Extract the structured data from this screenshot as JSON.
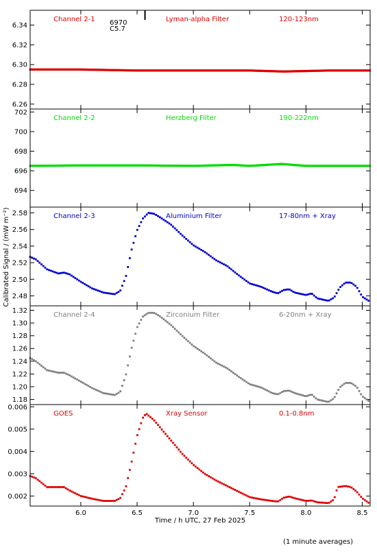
{
  "footer_note": "(1 minute averages)",
  "chart_data": {
    "type": "scatter",
    "shared_x": {
      "label": "Time / h UTC, 27 Feb 2025",
      "range": [
        5.55,
        8.57
      ],
      "ticks": [
        6.0,
        6.5,
        7.0,
        7.5,
        8.0,
        8.5
      ],
      "tick_labels": [
        "6.0",
        "6.5",
        "7.0",
        "7.5",
        "8.0",
        "8.5"
      ]
    },
    "shared_ylabel": "Calibrated Signal / (mW m⁻²)",
    "panels": [
      {
        "id": "ch21",
        "channel_label": "Channel 2-1",
        "filter_label": "Lyman-alpha Filter",
        "band_label": "120-123nm",
        "color": "#dd0000",
        "ylim": [
          6.255,
          6.355
        ],
        "yticks": [
          6.26,
          6.28,
          6.3,
          6.32,
          6.34
        ],
        "ytick_labels": [
          "6.26",
          "6.28",
          "6.30",
          "6.32",
          "6.34"
        ],
        "annotations": [
          "6970",
          "C5.7"
        ],
        "event_marker_x": 6.57,
        "points": [
          [
            5.55,
            6.295
          ],
          [
            6.0,
            6.295
          ],
          [
            6.5,
            6.294
          ],
          [
            7.0,
            6.294
          ],
          [
            7.5,
            6.294
          ],
          [
            7.8,
            6.293
          ],
          [
            8.2,
            6.294
          ],
          [
            8.57,
            6.294
          ]
        ]
      },
      {
        "id": "ch22",
        "channel_label": "Channel 2-2",
        "filter_label": "Herzberg Filter",
        "band_label": "190-222nm",
        "color": "#00dd00",
        "ylim": [
          692.3,
          702.3
        ],
        "yticks": [
          694,
          696,
          698,
          700,
          702
        ],
        "ytick_labels": [
          "694",
          "696",
          "698",
          "700",
          "702"
        ],
        "points": [
          [
            5.55,
            696.5
          ],
          [
            6.0,
            696.55
          ],
          [
            6.5,
            696.55
          ],
          [
            7.0,
            696.5
          ],
          [
            7.35,
            696.6
          ],
          [
            7.5,
            696.5
          ],
          [
            7.78,
            696.7
          ],
          [
            8.0,
            696.5
          ],
          [
            8.57,
            696.5
          ]
        ]
      },
      {
        "id": "ch23",
        "channel_label": "Channel 2-3",
        "filter_label": "Aluminium Filter",
        "band_label": "17-80nm + Xray",
        "color": "#0000cc",
        "ylim": [
          2.468,
          2.587
        ],
        "yticks": [
          2.48,
          2.5,
          2.52,
          2.54,
          2.56,
          2.58
        ],
        "ytick_labels": [
          "2.48",
          "2.50",
          "2.52",
          "2.54",
          "2.56",
          "2.58"
        ],
        "points": [
          [
            5.55,
            2.527
          ],
          [
            5.6,
            2.524
          ],
          [
            5.7,
            2.512
          ],
          [
            5.8,
            2.507
          ],
          [
            5.85,
            2.508
          ],
          [
            5.9,
            2.506
          ],
          [
            6.0,
            2.497
          ],
          [
            6.1,
            2.489
          ],
          [
            6.2,
            2.484
          ],
          [
            6.3,
            2.482
          ],
          [
            6.35,
            2.486
          ],
          [
            6.4,
            2.503
          ],
          [
            6.45,
            2.535
          ],
          [
            6.5,
            2.559
          ],
          [
            6.55,
            2.573
          ],
          [
            6.6,
            2.58
          ],
          [
            6.65,
            2.579
          ],
          [
            6.7,
            2.575
          ],
          [
            6.8,
            2.566
          ],
          [
            6.9,
            2.553
          ],
          [
            7.0,
            2.541
          ],
          [
            7.1,
            2.533
          ],
          [
            7.2,
            2.523
          ],
          [
            7.3,
            2.516
          ],
          [
            7.4,
            2.505
          ],
          [
            7.5,
            2.495
          ],
          [
            7.6,
            2.491
          ],
          [
            7.7,
            2.485
          ],
          [
            7.75,
            2.483
          ],
          [
            7.8,
            2.487
          ],
          [
            7.85,
            2.488
          ],
          [
            7.9,
            2.484
          ],
          [
            8.0,
            2.481
          ],
          [
            8.05,
            2.483
          ],
          [
            8.1,
            2.477
          ],
          [
            8.2,
            2.474
          ],
          [
            8.25,
            2.478
          ],
          [
            8.3,
            2.49
          ],
          [
            8.35,
            2.496
          ],
          [
            8.4,
            2.496
          ],
          [
            8.45,
            2.491
          ],
          [
            8.5,
            2.479
          ],
          [
            8.57,
            2.473
          ]
        ]
      },
      {
        "id": "ch24",
        "channel_label": "Channel 2-4",
        "filter_label": "Zirconium Filter",
        "band_label": "6-20nm + Xray",
        "color": "#808080",
        "ylim": [
          1.172,
          1.327
        ],
        "yticks": [
          1.18,
          1.2,
          1.22,
          1.24,
          1.26,
          1.28,
          1.3,
          1.32
        ],
        "ytick_labels": [
          "1.18",
          "1.20",
          "1.22",
          "1.24",
          "1.26",
          "1.28",
          "1.30",
          "1.32"
        ],
        "points": [
          [
            5.55,
            1.245
          ],
          [
            5.6,
            1.24
          ],
          [
            5.7,
            1.226
          ],
          [
            5.8,
            1.222
          ],
          [
            5.85,
            1.222
          ],
          [
            5.9,
            1.218
          ],
          [
            6.0,
            1.208
          ],
          [
            6.1,
            1.198
          ],
          [
            6.2,
            1.19
          ],
          [
            6.3,
            1.187
          ],
          [
            6.35,
            1.192
          ],
          [
            6.4,
            1.218
          ],
          [
            6.45,
            1.26
          ],
          [
            6.5,
            1.293
          ],
          [
            6.55,
            1.31
          ],
          [
            6.6,
            1.316
          ],
          [
            6.65,
            1.316
          ],
          [
            6.7,
            1.311
          ],
          [
            6.8,
            1.297
          ],
          [
            6.9,
            1.28
          ],
          [
            7.0,
            1.264
          ],
          [
            7.1,
            1.252
          ],
          [
            7.2,
            1.238
          ],
          [
            7.3,
            1.229
          ],
          [
            7.4,
            1.216
          ],
          [
            7.5,
            1.204
          ],
          [
            7.6,
            1.199
          ],
          [
            7.7,
            1.19
          ],
          [
            7.75,
            1.188
          ],
          [
            7.8,
            1.193
          ],
          [
            7.85,
            1.194
          ],
          [
            7.9,
            1.19
          ],
          [
            8.0,
            1.185
          ],
          [
            8.05,
            1.188
          ],
          [
            8.1,
            1.18
          ],
          [
            8.2,
            1.176
          ],
          [
            8.25,
            1.182
          ],
          [
            8.3,
            1.199
          ],
          [
            8.35,
            1.206
          ],
          [
            8.4,
            1.206
          ],
          [
            8.45,
            1.2
          ],
          [
            8.5,
            1.185
          ],
          [
            8.57,
            1.176
          ]
        ]
      },
      {
        "id": "goes",
        "channel_label": "GOES",
        "filter_label": "Xray Sensor",
        "band_label": "0.1-0.8nm",
        "color": "#dd0000",
        "ylim": [
          0.00155,
          0.0061
        ],
        "yticks": [
          0.002,
          0.003,
          0.004,
          0.005,
          0.006
        ],
        "ytick_labels": [
          "0.002",
          "0.003",
          "0.004",
          "0.005",
          "0.006"
        ],
        "points": [
          [
            5.55,
            0.0029
          ],
          [
            5.6,
            0.0028
          ],
          [
            5.7,
            0.0024
          ],
          [
            5.8,
            0.0024
          ],
          [
            5.85,
            0.0024
          ],
          [
            5.9,
            0.00225
          ],
          [
            6.0,
            0.002
          ],
          [
            6.1,
            0.00188
          ],
          [
            6.2,
            0.00178
          ],
          [
            6.3,
            0.00178
          ],
          [
            6.35,
            0.0019
          ],
          [
            6.4,
            0.0024
          ],
          [
            6.45,
            0.0035
          ],
          [
            6.5,
            0.0047
          ],
          [
            6.55,
            0.0055
          ],
          [
            6.58,
            0.0057
          ],
          [
            6.65,
            0.0054
          ],
          [
            6.7,
            0.0051
          ],
          [
            6.8,
            0.0045
          ],
          [
            6.9,
            0.0039
          ],
          [
            7.0,
            0.0034
          ],
          [
            7.1,
            0.003
          ],
          [
            7.2,
            0.0027
          ],
          [
            7.3,
            0.00245
          ],
          [
            7.4,
            0.0022
          ],
          [
            7.5,
            0.00195
          ],
          [
            7.6,
            0.00185
          ],
          [
            7.7,
            0.00178
          ],
          [
            7.75,
            0.00175
          ],
          [
            7.8,
            0.00192
          ],
          [
            7.85,
            0.00198
          ],
          [
            7.9,
            0.0019
          ],
          [
            8.0,
            0.00178
          ],
          [
            8.05,
            0.0018
          ],
          [
            8.1,
            0.00172
          ],
          [
            8.2,
            0.00168
          ],
          [
            8.25,
            0.00185
          ],
          [
            8.28,
            0.0024
          ],
          [
            8.35,
            0.00245
          ],
          [
            8.4,
            0.0024
          ],
          [
            8.45,
            0.0022
          ],
          [
            8.5,
            0.0019
          ],
          [
            8.57,
            0.00165
          ]
        ]
      }
    ]
  }
}
